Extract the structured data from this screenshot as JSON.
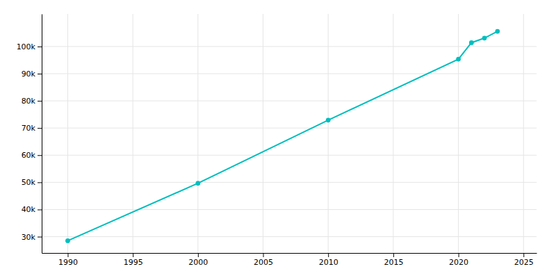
{
  "chart_data": {
    "type": "line",
    "x": [
      1990,
      2000,
      2010,
      2020,
      2021,
      2022,
      2023
    ],
    "values": [
      28502,
      49663,
      72897,
      95342,
      101400,
      103100,
      105587
    ],
    "color": "#00BEBE",
    "marker": "circle",
    "xlim": [
      1988,
      2026
    ],
    "ylim": [
      24000,
      112000
    ],
    "xticks": [
      1990,
      1995,
      2000,
      2005,
      2010,
      2015,
      2020,
      2025
    ],
    "yticks": [
      {
        "value": 30000,
        "label": "30k"
      },
      {
        "value": 40000,
        "label": "40k"
      },
      {
        "value": 50000,
        "label": "50k"
      },
      {
        "value": 60000,
        "label": "60k"
      },
      {
        "value": 70000,
        "label": "70k"
      },
      {
        "value": 80000,
        "label": "80k"
      },
      {
        "value": 90000,
        "label": "90k"
      },
      {
        "value": 100000,
        "label": "100k"
      }
    ],
    "grid": true
  }
}
